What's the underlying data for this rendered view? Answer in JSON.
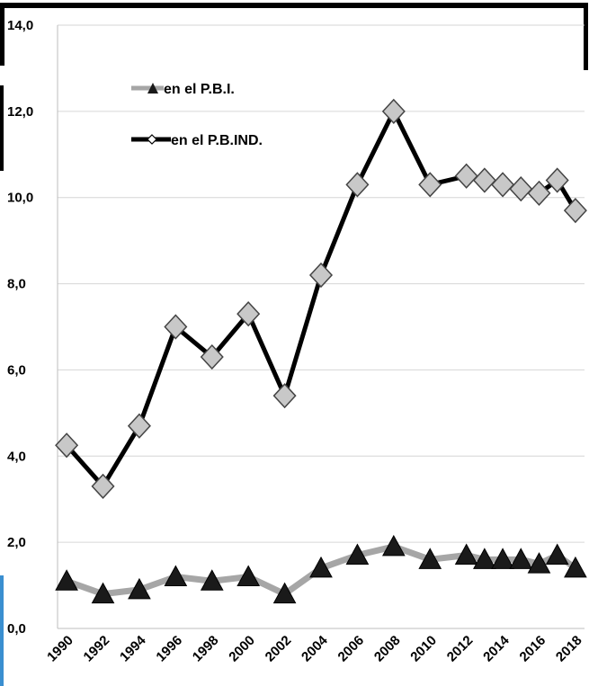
{
  "chart_data": {
    "type": "line",
    "title": "",
    "xlabel": "",
    "ylabel": "",
    "ylim": [
      0,
      14
    ],
    "yticks": [
      "0,0",
      "2,0",
      "4,0",
      "6,0",
      "8,0",
      "10,0",
      "12,0",
      "14,0"
    ],
    "xticks": [
      "1990",
      "1992",
      "1994",
      "1996",
      "1998",
      "2000",
      "2002",
      "2004",
      "2006",
      "2008",
      "2010",
      "2012",
      "2014",
      "2016",
      "2018"
    ],
    "xlim": [
      1990,
      2019
    ],
    "grid": "horizontal",
    "legend_position": "top-left",
    "series": [
      {
        "name": "en el P.B.I.",
        "marker": "triangle",
        "line_color": "#a6a6a6",
        "marker_color": "#1a1a1a",
        "x": [
          1990.5,
          1992.5,
          1994.5,
          1996.5,
          1998.5,
          2000.5,
          2002.5,
          2004.5,
          2006.5,
          2008.5,
          2010.5,
          2012.5,
          2013.5,
          2014.5,
          2015.5,
          2016.5,
          2017.5,
          2018.5
        ],
        "values": [
          1.1,
          0.8,
          0.9,
          1.2,
          1.1,
          1.2,
          0.8,
          1.4,
          1.7,
          1.9,
          1.6,
          1.7,
          1.6,
          1.6,
          1.6,
          1.5,
          1.7,
          1.4
        ]
      },
      {
        "name": "en el P.B.IND.",
        "marker": "diamond",
        "line_color": "#000000",
        "marker_color": "#c8c8c8",
        "x": [
          1990.5,
          1992.5,
          1994.5,
          1996.5,
          1998.5,
          2000.5,
          2002.5,
          2004.5,
          2006.5,
          2008.5,
          2010.5,
          2012.5,
          2013.5,
          2014.5,
          2015.5,
          2016.5,
          2017.5,
          2018.5
        ],
        "values": [
          4.25,
          3.3,
          4.7,
          7.0,
          6.3,
          7.3,
          5.4,
          8.2,
          10.3,
          12.0,
          10.3,
          10.5,
          10.4,
          10.3,
          10.2,
          10.1,
          10.4,
          9.7
        ]
      }
    ]
  }
}
